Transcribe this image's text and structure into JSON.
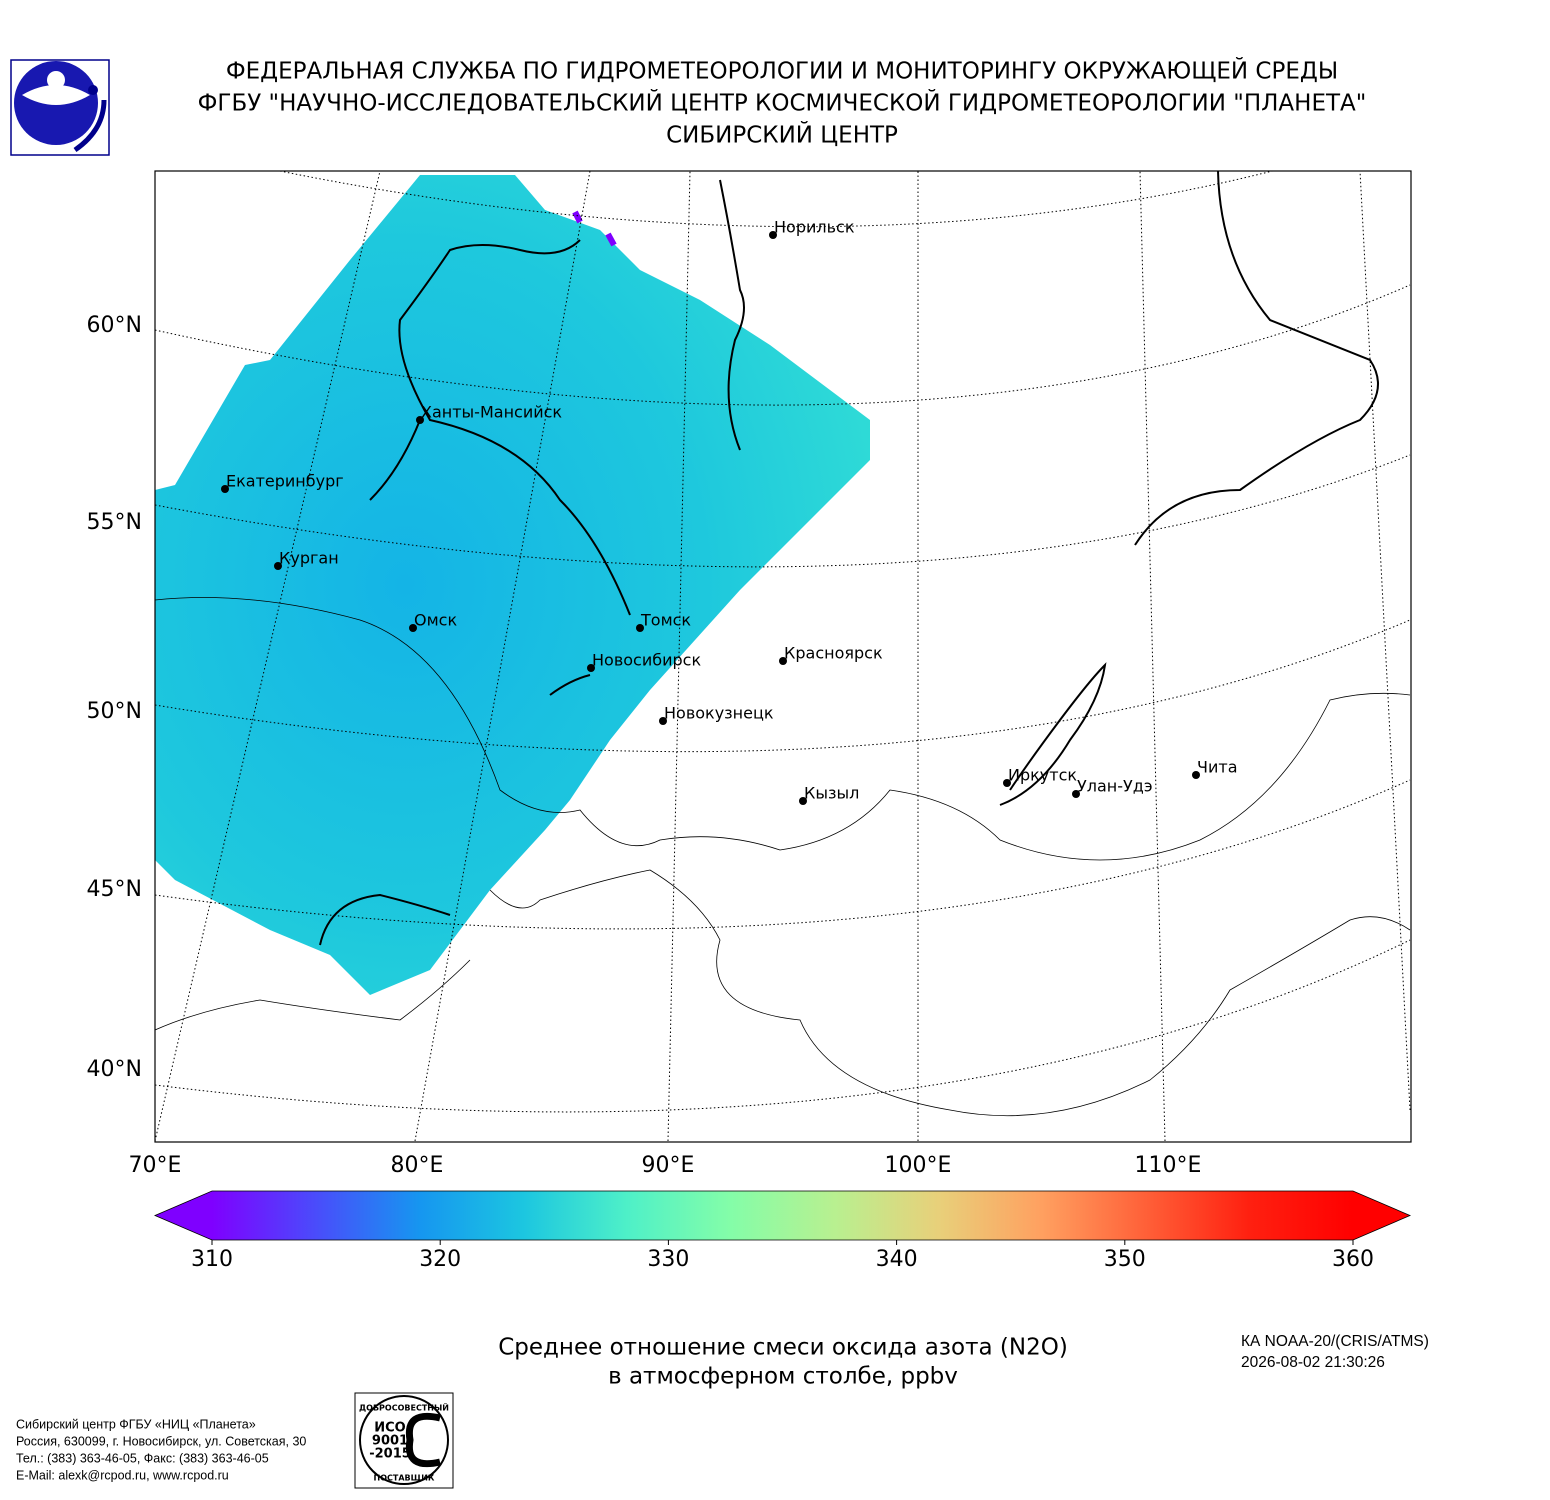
{
  "header": {
    "lines": [
      "ФЕДЕРАЛЬНАЯ СЛУЖБА ПО ГИДРОМЕТЕОРОЛОГИИ И МОНИТОРИНГУ ОКРУЖАЮЩЕЙ СРЕДЫ",
      "ФГБУ \"НАУЧНО-ИССЛЕДОВАТЕЛЬСКИЙ ЦЕНТР КОСМИЧЕСКОЙ ГИДРОМЕТЕОРОЛОГИИ \"ПЛАНЕТА\"",
      "СИБИРСКИЙ ЦЕНТР"
    ]
  },
  "map": {
    "lat_labels": [
      "60°N",
      "55°N",
      "50°N",
      "45°N",
      "40°N"
    ],
    "lon_labels": [
      "70°E",
      "80°E",
      "90°E",
      "100°E",
      "110°E"
    ],
    "cities": [
      "Норильск",
      "Ханты-Мансийск",
      "Екатеринбург",
      "Курган",
      "Омск",
      "Томск",
      "Новосибирск",
      "Красноярск",
      "Новокузнецк",
      "Кызыл",
      "Иркутск",
      "Улан-Удэ",
      "Чита"
    ]
  },
  "colorbar": {
    "lim": [
      310,
      360
    ],
    "ticks": [
      310,
      320,
      330,
      340,
      350,
      360
    ],
    "colors": [
      "#7f00ff",
      "#4a4cfb",
      "#1696f0",
      "#1cc6e0",
      "#4ef0c8",
      "#84fda8",
      "#b8f090",
      "#e8d07a",
      "#ffa060",
      "#ff6038",
      "#ff2010",
      "#ff0000"
    ]
  },
  "caption": [
    "Среднее отношение смеси оксида азота (N2O)",
    "в атмосферном столбе, ppbv"
  ],
  "satellite": [
    "КА NOAA-20/(CRIS/ATMS)",
    "2026-08-02 21:30:26"
  ],
  "footer": [
    "Сибирский центр ФГБУ «НИЦ «Планета»",
    "Россия, 630099, г. Новосибирск, ул. Советская, 30",
    "Тел.: (383) 363-46-05, Факс: (383) 363-46-05",
    "E-Mail: alexk@rcpod.ru, www.rcpod.ru"
  ],
  "stamp": [
    "ДОБРОСОВЕСТНЫЙ",
    "ИСО",
    "9001",
    "-2015",
    "ПОСТАВЩИК"
  ]
}
